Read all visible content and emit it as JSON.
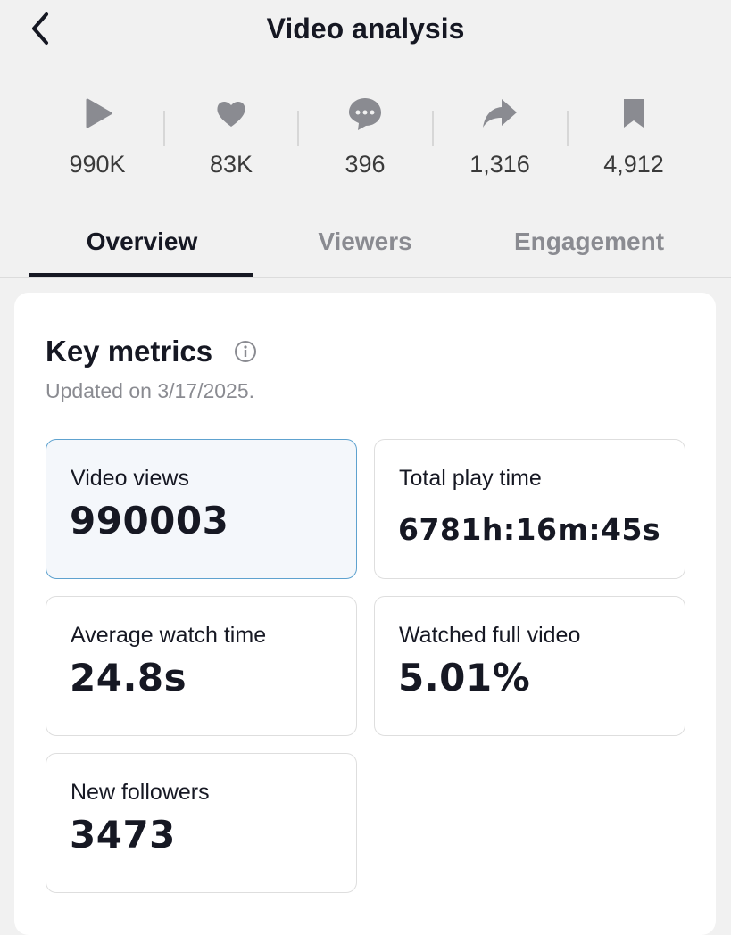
{
  "header": {
    "title": "Video analysis"
  },
  "stats": [
    "990K",
    "83K",
    "396",
    "1,316",
    "4,912"
  ],
  "tabs": [
    "Overview",
    "Viewers",
    "Engagement"
  ],
  "card": {
    "title": "Key metrics",
    "subtitle": "Updated on 3/17/2025.",
    "metrics": [
      {
        "label": "Video views",
        "value": "990003"
      },
      {
        "label": "Total play time",
        "value": "6781h:16m:45s"
      },
      {
        "label": "Average watch time",
        "value": "24.8s"
      },
      {
        "label": "Watched full video",
        "value": "5.01%"
      },
      {
        "label": "New followers",
        "value": "3473"
      }
    ]
  }
}
